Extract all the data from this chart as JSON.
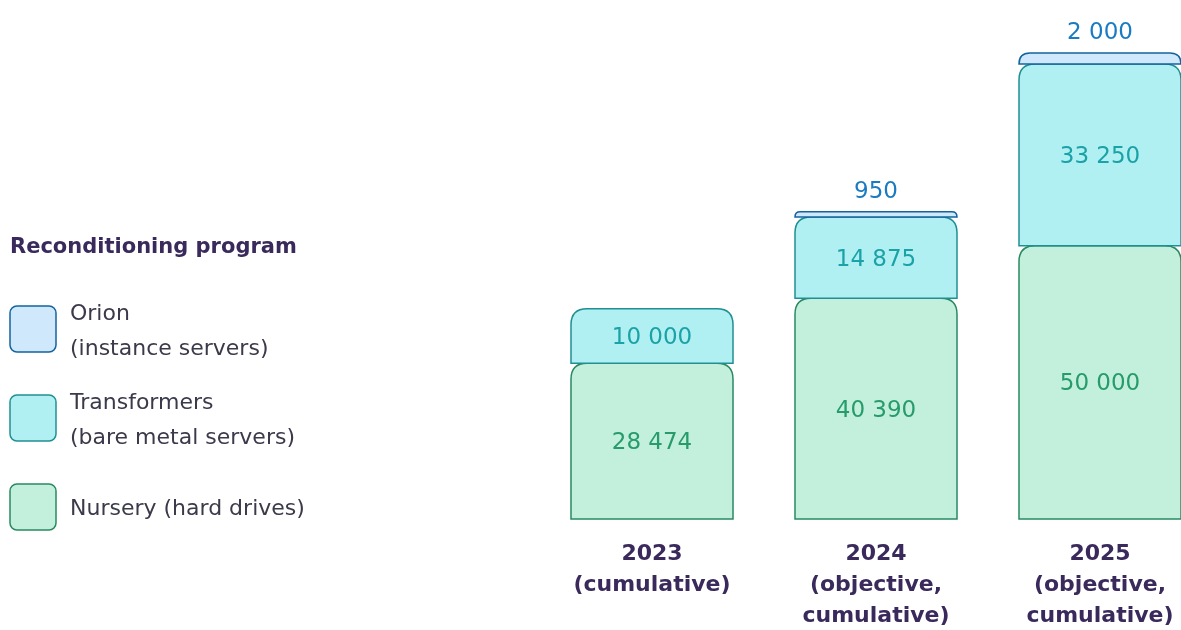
{
  "chart_data": {
    "type": "bar",
    "stacked": true,
    "data_labels": true,
    "legend": "left",
    "legend_title": "Reconditioning program",
    "categories": [
      "2023\n(cumulative)",
      "2024\n(objective,\ncumulative)",
      "2025\n(objective,\ncumulative)"
    ],
    "series": [
      {
        "name": "Nursery (hard drives)",
        "color": "#c3f0dd",
        "values": [
          28474,
          40390,
          50000
        ]
      },
      {
        "name": "Transformers\n(bare metal servers)",
        "color": "#b0f0f2",
        "values": [
          10000,
          14875,
          33250
        ]
      },
      {
        "name": "Orion\n(instance servers)",
        "color": "#cfe8fb",
        "values": [
          null,
          950,
          2000
        ]
      }
    ]
  }
}
